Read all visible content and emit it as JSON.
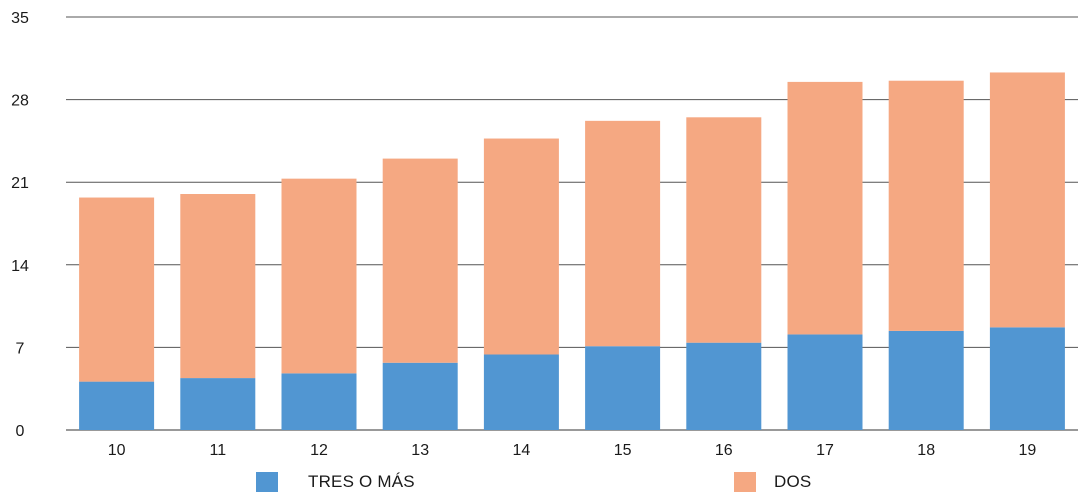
{
  "chart_data": {
    "type": "bar",
    "stacked": true,
    "categories": [
      "10",
      "11",
      "12",
      "13",
      "14",
      "15",
      "16",
      "17",
      "18",
      "19"
    ],
    "series": [
      {
        "name": "TRES O MÁS",
        "color": "#5196D2",
        "values": [
          4.1,
          4.4,
          4.8,
          5.7,
          6.4,
          7.1,
          7.4,
          8.1,
          8.4,
          8.7
        ]
      },
      {
        "name": "DOS",
        "color": "#F5A882",
        "values": [
          15.6,
          15.6,
          16.5,
          17.3,
          18.3,
          19.1,
          19.1,
          21.4,
          21.2,
          21.6
        ]
      }
    ],
    "ylim": [
      0,
      35
    ],
    "yticks": [
      "0",
      "7",
      "14",
      "21",
      "28",
      "35"
    ],
    "grid": true,
    "legend_position": "bottom"
  }
}
